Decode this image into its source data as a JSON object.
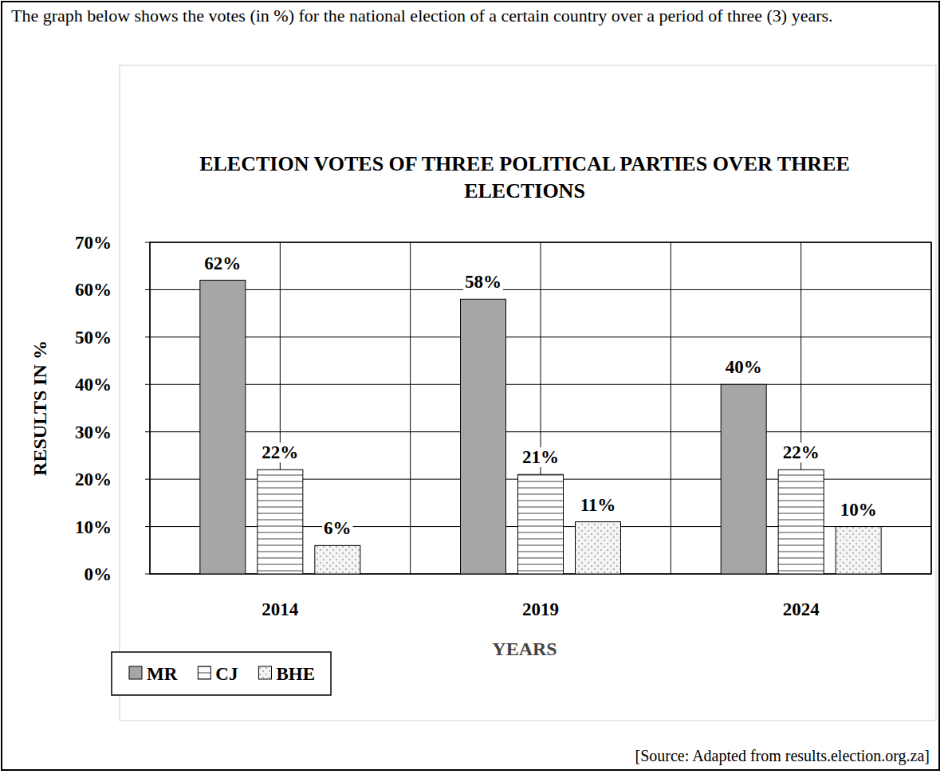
{
  "header": {
    "text": "The graph below shows the votes (in %) for the national election of a certain country over a period of three (3) years."
  },
  "chart_data": {
    "type": "bar",
    "title": "ELECTION VOTES OF THREE POLITICAL PARTIES OVER THREE ELECTIONS",
    "x_label": "YEARS",
    "y_label": "RESULTS IN %",
    "categories": [
      "2014",
      "2019",
      "2024"
    ],
    "series": [
      {
        "name": "MR",
        "color": "#a6a6a6",
        "values": [
          62,
          58,
          40
        ],
        "value_labels": [
          "62%",
          "58%",
          "40%"
        ]
      },
      {
        "name": "CJ",
        "color": "#ffffff",
        "values": [
          22,
          21,
          22
        ],
        "value_labels": [
          "22%",
          "21%",
          "22%"
        ]
      },
      {
        "name": "BHE",
        "color": "#f4f4f4",
        "values": [
          6,
          11,
          10
        ],
        "value_labels": [
          "6%",
          "11%",
          "10%"
        ]
      }
    ],
    "ylim": [
      0,
      70
    ],
    "yticks": [
      {
        "value": 0,
        "label": "0%"
      },
      {
        "value": 10,
        "label": "10%"
      },
      {
        "value": 20,
        "label": "20%"
      },
      {
        "value": 30,
        "label": "30%"
      },
      {
        "value": 40,
        "label": "40%"
      },
      {
        "value": 50,
        "label": "50%"
      },
      {
        "value": 60,
        "label": "60%"
      },
      {
        "value": 70,
        "label": "70%"
      }
    ],
    "grid": true,
    "legend": "bottom-left",
    "data_labels": true,
    "source": "[Source: Adapted from results.election.org.za]"
  }
}
